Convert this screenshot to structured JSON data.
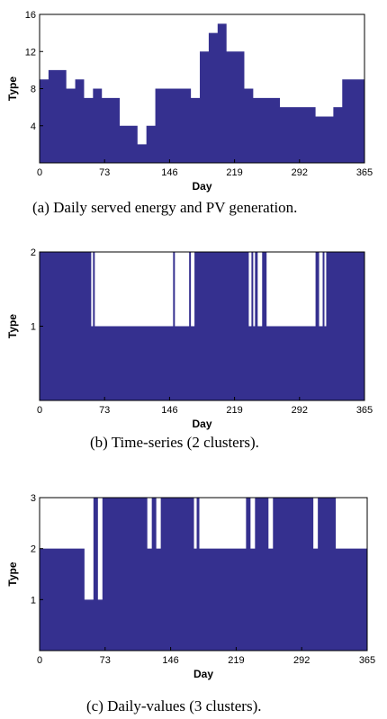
{
  "colors": {
    "fill": "#35308f"
  },
  "chart_data": [
    {
      "type": "area",
      "caption": "(a) Daily served energy and PV generation.",
      "xlabel": "Day",
      "ylabel": "Type",
      "xlim": [
        0,
        365
      ],
      "ylim": [
        0,
        16
      ],
      "xticks": [
        0,
        73,
        146,
        219,
        292,
        365
      ],
      "yticks": [
        4,
        8,
        12,
        16
      ],
      "series": [
        {
          "x": [
            0,
            10,
            20,
            30,
            40,
            50,
            60,
            70,
            80,
            90,
            100,
            110,
            120,
            130,
            140,
            150,
            160,
            170,
            180,
            190,
            200,
            210,
            220,
            230,
            240,
            250,
            260,
            270,
            280,
            290,
            300,
            310,
            320,
            330,
            340,
            350,
            365
          ],
          "values": [
            9,
            10,
            10,
            8,
            9,
            7,
            8,
            7,
            7,
            4,
            4,
            2,
            4,
            8,
            8,
            8,
            8,
            7,
            12,
            14,
            15,
            12,
            12,
            8,
            7,
            7,
            7,
            6,
            6,
            6,
            6,
            5,
            5,
            6,
            9,
            9,
            9
          ]
        }
      ]
    },
    {
      "type": "area",
      "caption": "(b) Time-series (2 clusters).",
      "xlabel": "Day",
      "ylabel": "Type",
      "xlim": [
        0,
        365
      ],
      "ylim": [
        0,
        2
      ],
      "xticks": [
        0,
        73,
        146,
        219,
        292,
        365
      ],
      "yticks": [
        1,
        2
      ],
      "series": [
        {
          "x": [
            0,
            55,
            58,
            60,
            62,
            64,
            150,
            152,
            168,
            170,
            174,
            212,
            225,
            235,
            238,
            240,
            242,
            245,
            250,
            255,
            265,
            310,
            314,
            318,
            320,
            322,
            326,
            365
          ],
          "values": [
            2,
            2,
            1,
            2,
            1,
            1,
            2,
            1,
            2,
            1,
            2,
            2,
            2,
            1,
            2,
            1,
            2,
            1,
            2,
            1,
            1,
            2,
            1,
            2,
            1,
            2,
            2,
            2
          ]
        }
      ]
    },
    {
      "type": "area",
      "caption": "(c) Daily-values (3 clusters).",
      "xlabel": "Day",
      "ylabel": "Type",
      "xlim": [
        0,
        365
      ],
      "ylim": [
        0,
        3
      ],
      "xticks": [
        0,
        73,
        146,
        219,
        292,
        365
      ],
      "yticks": [
        1,
        2,
        3
      ],
      "series": [
        {
          "x": [
            0,
            30,
            45,
            50,
            55,
            60,
            65,
            70,
            75,
            120,
            125,
            130,
            135,
            168,
            172,
            175,
            178,
            180,
            230,
            235,
            240,
            245,
            255,
            260,
            300,
            305,
            310,
            315,
            330,
            335,
            340,
            345,
            365
          ],
          "values": [
            2,
            2,
            2,
            1,
            1,
            3,
            1,
            3,
            3,
            2,
            3,
            2,
            3,
            3,
            2,
            3,
            2,
            2,
            3,
            2,
            3,
            3,
            2,
            3,
            3,
            2,
            3,
            3,
            2,
            2,
            2,
            2,
            2
          ]
        }
      ]
    }
  ]
}
